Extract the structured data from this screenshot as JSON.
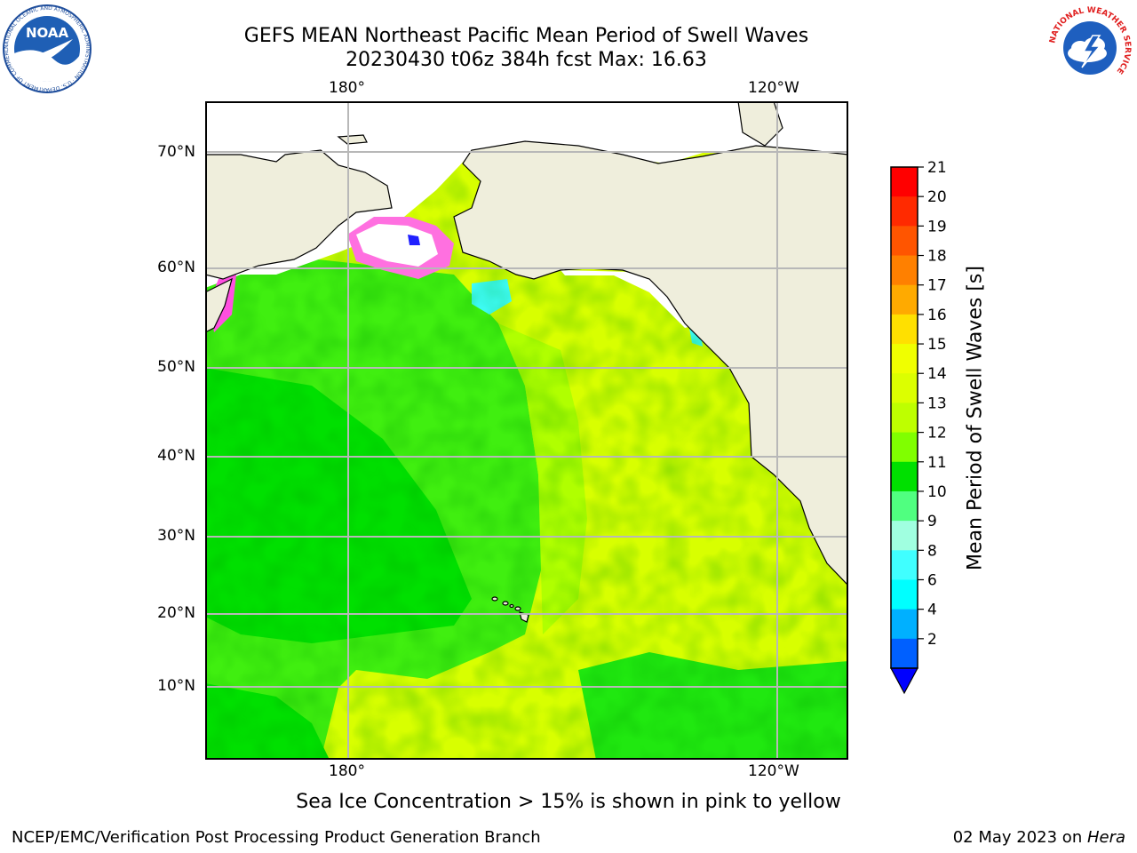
{
  "title": {
    "line1": "GEFS MEAN Northeast Pacific Mean Period of Swell Waves",
    "line2": "20230430 t06z 384h fcst   Max: 16.63"
  },
  "logos": {
    "left": {
      "text": "NOAA",
      "ring_text": "NATIONAL OCEANIC AND ATMOSPHERIC ADMINISTRATION · U.S. DEPARTMENT OF COMMERCE"
    },
    "right": {
      "ring_text": "NATIONAL WEATHER SERVICE"
    }
  },
  "map": {
    "top_ticks": [
      "180°",
      "120°W"
    ],
    "bottom_ticks": [
      "180°",
      "120°W"
    ],
    "lat_ticks": [
      "70°N",
      "60°N",
      "50°N",
      "40°N",
      "30°N",
      "20°N",
      "10°N"
    ]
  },
  "colorbar": {
    "label": "Mean Period of Swell Waves [s]",
    "ticks": [
      "21",
      "20",
      "19",
      "18",
      "17",
      "16",
      "15",
      "14",
      "13",
      "12",
      "11",
      "10",
      "9",
      "8",
      "6",
      "4",
      "2"
    ],
    "colors": [
      "#ff0000",
      "#ff2a00",
      "#ff5500",
      "#ff8000",
      "#ffaa00",
      "#ffe000",
      "#f0ff00",
      "#dcff00",
      "#beff00",
      "#80ff00",
      "#00e000",
      "#50ff80",
      "#a0ffe0",
      "#40ffff",
      "#00ffff",
      "#00b0ff",
      "#0060ff"
    ],
    "extend_color": "#0000ff"
  },
  "footnote": "Sea Ice Concentration > 15% is shown in pink to yellow",
  "credits": {
    "left": "NCEP/EMC/Verification Post Processing Product Generation Branch",
    "right_date": "02 May 2023 on ",
    "right_host": "Hera"
  }
}
